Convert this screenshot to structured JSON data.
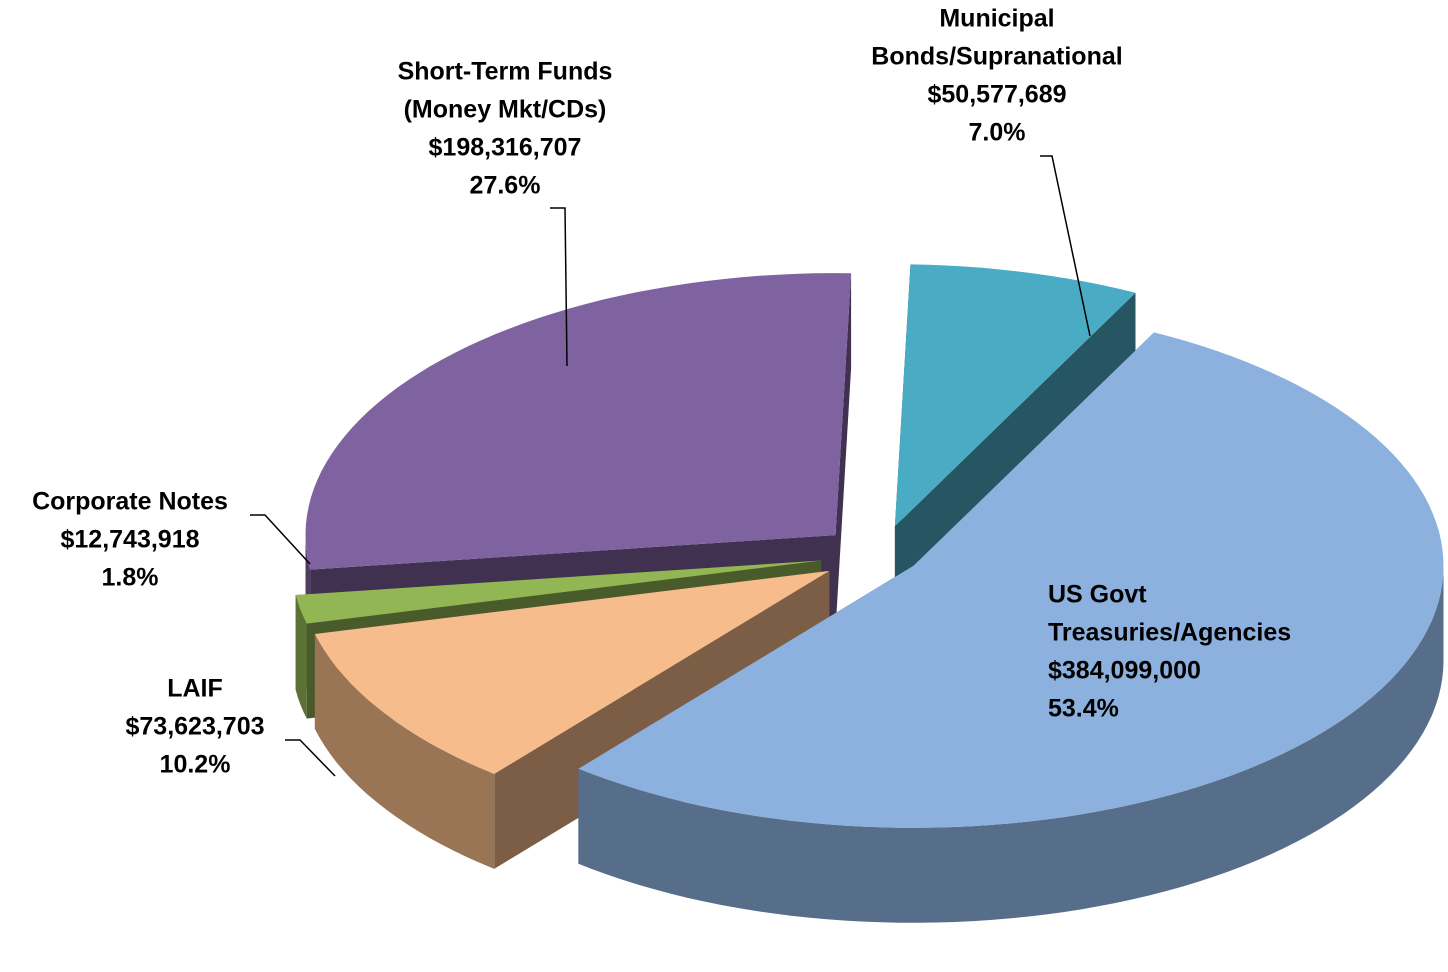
{
  "chart_data": {
    "type": "pie3d",
    "categories": [
      [
        "US Govt",
        "Treasuries/Agencies"
      ],
      [
        "LAIF"
      ],
      [
        "Corporate Notes"
      ],
      [
        "Short-Term Funds",
        "(Money Mkt/CDs)"
      ],
      [
        "Municipal",
        "Bonds/Supranational"
      ]
    ],
    "values": [
      384099000,
      73623703,
      12743918,
      198316707,
      50577689
    ],
    "value_labels": [
      "$384,099,000",
      "$73,623,703",
      "$12,743,918",
      "$198,316,707",
      "$50,577,689"
    ],
    "percents": [
      53.4,
      10.2,
      1.8,
      27.6,
      7.0
    ],
    "percent_labels": [
      "53.4%",
      "10.2%",
      "1.8%",
      "27.6%",
      "7.0%"
    ],
    "colors": [
      "#8db1de",
      "#f7bc8b",
      "#93b655",
      "#7f62a0",
      "#4aabc4"
    ]
  }
}
